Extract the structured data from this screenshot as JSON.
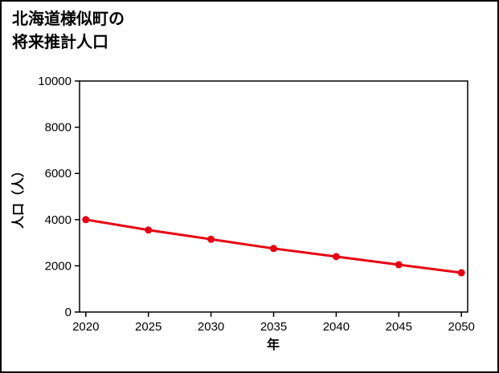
{
  "page": {
    "title_line1": "北海道様似町の",
    "title_line2": "将来推計人口"
  },
  "chart_data": {
    "type": "line",
    "title": "北海道様似町の将来推計人口",
    "series": [
      {
        "name": "将来推計人口",
        "x": [
          2020,
          2025,
          2030,
          2035,
          2040,
          2045,
          2050
        ],
        "values": [
          4000,
          3550,
          3150,
          2750,
          2400,
          2050,
          1700
        ]
      }
    ],
    "xlabel": "年",
    "ylabel": "人口（人）",
    "xlim": [
      2019.5,
      2050.5
    ],
    "ylim": [
      0,
      10000
    ],
    "xticks": [
      2020,
      2025,
      2030,
      2035,
      2040,
      2045,
      2050
    ],
    "yticks": [
      0,
      2000,
      4000,
      6000,
      8000,
      10000
    ],
    "line_color": "#e60012",
    "marker": "circle",
    "grid": false,
    "legend": "none"
  }
}
